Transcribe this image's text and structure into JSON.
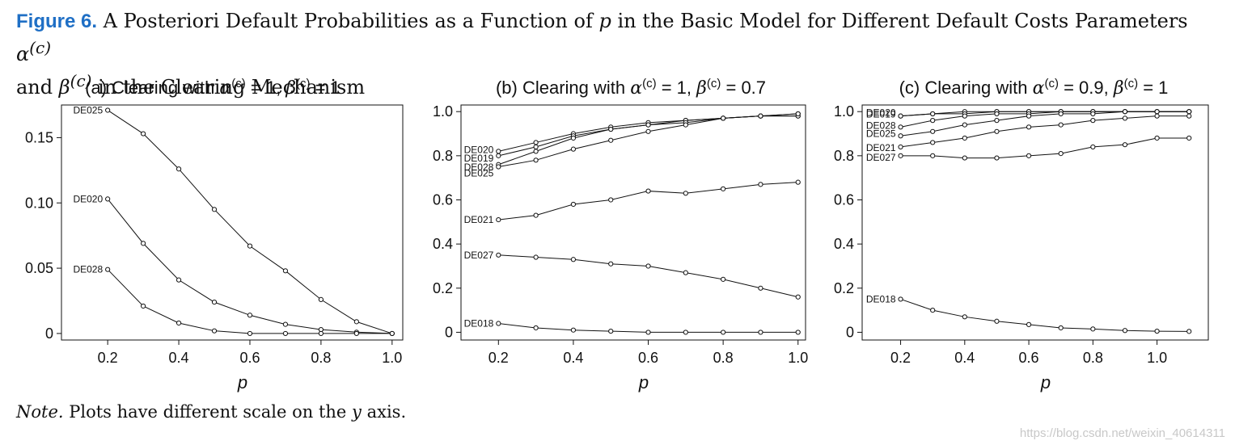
{
  "caption": {
    "figure_label": "Figure 6.",
    "text_part1": "A Posteriori Default Probabilities as a Function of ",
    "p": "p",
    "text_part2": " in the Basic Model for Different Default Costs Parameters ",
    "alpha": "α",
    "sup_c": "(c)",
    "and": "and ",
    "beta": "β",
    "text_part3": " in the Clearing Mechanism"
  },
  "note": {
    "label": "Note.",
    "text_part1": " Plots have different scale on the ",
    "y": "y",
    "text_part2": " axis."
  },
  "watermark": "https://blog.csdn.net/weixin_40614311",
  "chart_data": [
    {
      "type": "line",
      "title": "(a) Clearing with α(c) = 1, β(c) = 1",
      "title_prefix": "(a) Clearing with ",
      "alpha_value": "1",
      "beta_value": "1",
      "xlabel": "p",
      "ylabel": "",
      "xlim": [
        0.07,
        1.03
      ],
      "ylim": [
        -0.005,
        0.175
      ],
      "xticks": [
        0.2,
        0.4,
        0.6,
        0.8,
        1.0
      ],
      "xtick_labels": [
        "0.2",
        "0.4",
        "0.6",
        "0.8",
        "1.0"
      ],
      "yticks": [
        0,
        0.05,
        0.1,
        0.15
      ],
      "ytick_labels": [
        "0",
        "0.05",
        "0.10",
        "0.15"
      ],
      "x": [
        0.2,
        0.3,
        0.4,
        0.5,
        0.6,
        0.7,
        0.8,
        0.9,
        1.0
      ],
      "series": [
        {
          "name": "DE025",
          "values": [
            0.171,
            0.153,
            0.126,
            0.095,
            0.067,
            0.048,
            0.026,
            0.009,
            0.0
          ]
        },
        {
          "name": "DE020",
          "values": [
            0.103,
            0.069,
            0.041,
            0.024,
            0.014,
            0.007,
            0.003,
            0.001,
            0.0
          ]
        },
        {
          "name": "DE028",
          "values": [
            0.049,
            0.021,
            0.008,
            0.002,
            0.0,
            0.0,
            0.0,
            0.0,
            0.0
          ]
        }
      ]
    },
    {
      "type": "line",
      "title": "(b) Clearing with α(c) = 1, β(c) = 0.7",
      "title_prefix": "(b) Clearing with ",
      "alpha_value": "1",
      "beta_value": "0.7",
      "xlabel": "p",
      "ylabel": "",
      "xlim": [
        0.1,
        1.02
      ],
      "ylim": [
        -0.035,
        1.03
      ],
      "xticks": [
        0.2,
        0.4,
        0.6,
        0.8,
        1.0
      ],
      "xtick_labels": [
        "0.2",
        "0.4",
        "0.6",
        "0.8",
        "1.0"
      ],
      "yticks": [
        0,
        0.2,
        0.4,
        0.6,
        0.8,
        1.0
      ],
      "ytick_labels": [
        "0",
        "0.2",
        "0.4",
        "0.6",
        "0.8",
        "1.0"
      ],
      "x": [
        0.2,
        0.3,
        0.4,
        0.5,
        0.6,
        0.7,
        0.8,
        0.9,
        1.0
      ],
      "series": [
        {
          "name": "DE020",
          "values": [
            0.82,
            0.86,
            0.9,
            0.93,
            0.95,
            0.96,
            0.97,
            0.98,
            0.99
          ]
        },
        {
          "name": "DE019",
          "values": [
            0.8,
            0.84,
            0.89,
            0.92,
            0.94,
            0.96,
            0.97,
            0.98,
            0.98
          ]
        },
        {
          "name": "DE028",
          "values": [
            0.76,
            0.82,
            0.88,
            0.92,
            0.94,
            0.95,
            0.97,
            0.98,
            0.98
          ]
        },
        {
          "name": "DE025",
          "values": [
            0.75,
            0.78,
            0.83,
            0.87,
            0.91,
            0.94,
            0.97,
            0.98,
            0.99
          ]
        },
        {
          "name": "DE021",
          "values": [
            0.51,
            0.53,
            0.58,
            0.6,
            0.64,
            0.63,
            0.65,
            0.67,
            0.68
          ]
        },
        {
          "name": "DE027",
          "values": [
            0.35,
            0.34,
            0.33,
            0.31,
            0.3,
            0.27,
            0.24,
            0.2,
            0.16
          ]
        },
        {
          "name": "DE018",
          "values": [
            0.04,
            0.02,
            0.01,
            0.005,
            0.0,
            0.0,
            0.0,
            0.0,
            0.0
          ]
        }
      ]
    },
    {
      "type": "line",
      "title": "(c) Clearing with α(c) = 0.9, β(c) = 1",
      "title_prefix": "(c) Clearing with ",
      "alpha_value": "0.9",
      "beta_value": "1",
      "xlabel": "p",
      "ylabel": "",
      "xlim": [
        0.08,
        1.16
      ],
      "ylim": [
        -0.035,
        1.03
      ],
      "xticks": [
        0.2,
        0.4,
        0.6,
        0.8,
        1.0
      ],
      "xtick_labels": [
        "0.2",
        "0.4",
        "0.6",
        "0.8",
        "1.0"
      ],
      "yticks": [
        0,
        0.2,
        0.4,
        0.6,
        0.8,
        1.0
      ],
      "ytick_labels": [
        "0",
        "0.2",
        "0.4",
        "0.6",
        "0.8",
        "1.0"
      ],
      "x": [
        0.2,
        0.3,
        0.4,
        0.5,
        0.6,
        0.7,
        0.8,
        0.9,
        1.0,
        1.1
      ],
      "series": [
        {
          "name": "DE020",
          "values": [
            0.98,
            0.99,
            1.0,
            1.0,
            1.0,
            1.0,
            1.0,
            1.0,
            1.0,
            1.0
          ]
        },
        {
          "name": "DE019",
          "values": [
            0.98,
            0.99,
            0.99,
            1.0,
            1.0,
            1.0,
            1.0,
            1.0,
            1.0,
            1.0
          ]
        },
        {
          "name": "DE028",
          "values": [
            0.93,
            0.96,
            0.98,
            0.99,
            0.99,
            1.0,
            1.0,
            1.0,
            1.0,
            1.0
          ]
        },
        {
          "name": "DE025",
          "values": [
            0.89,
            0.91,
            0.94,
            0.96,
            0.98,
            0.99,
            0.99,
            1.0,
            1.0,
            1.0
          ]
        },
        {
          "name": "DE021",
          "values": [
            0.84,
            0.86,
            0.88,
            0.91,
            0.93,
            0.94,
            0.96,
            0.97,
            0.98,
            0.98
          ]
        },
        {
          "name": "DE027",
          "values": [
            0.8,
            0.8,
            0.79,
            0.79,
            0.8,
            0.81,
            0.84,
            0.85,
            0.88,
            0.88
          ]
        },
        {
          "name": "DE018",
          "values": [
            0.15,
            0.1,
            0.07,
            0.05,
            0.035,
            0.02,
            0.015,
            0.008,
            0.005,
            0.004
          ]
        }
      ]
    }
  ]
}
